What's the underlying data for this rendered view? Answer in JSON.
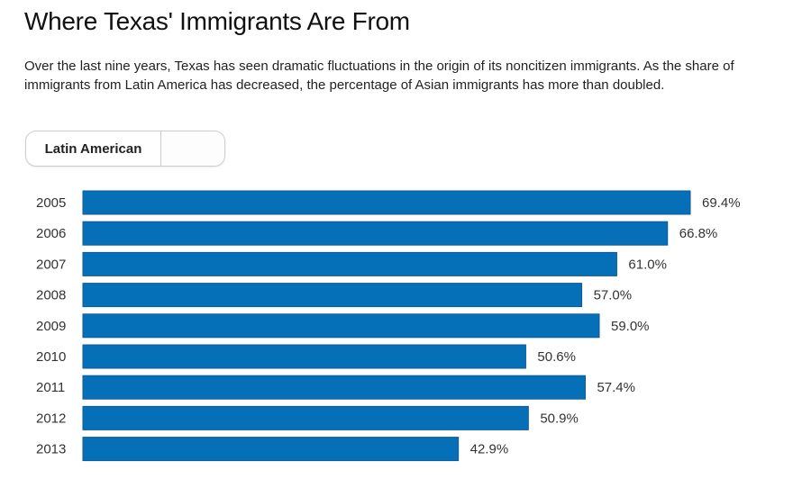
{
  "title": "Where Texas' Immigrants Are From",
  "description": "Over the last nine years, Texas has seen dramatic fluctuations in the origin of its noncitizen immigrants. As the share of immigrants from Latin America has decreased, the percentage of Asian immigrants has more than doubled.",
  "toggle": {
    "options": [
      "Latin American",
      ""
    ],
    "selected": "Latin American"
  },
  "chart_data": {
    "type": "bar",
    "orientation": "horizontal",
    "title": "Where Texas' Immigrants Are From",
    "series_name": "Latin American",
    "categories": [
      "2005",
      "2006",
      "2007",
      "2008",
      "2009",
      "2010",
      "2011",
      "2012",
      "2013"
    ],
    "values": [
      69.4,
      66.8,
      61.0,
      57.0,
      59.0,
      50.6,
      57.4,
      50.9,
      42.9
    ],
    "labels": [
      "69.4%",
      "66.8%",
      "61.0%",
      "57.0%",
      "59.0%",
      "50.6%",
      "57.4%",
      "50.9%",
      "42.9%"
    ],
    "unit": "%",
    "xlim": [
      0,
      69.4
    ],
    "grid": false,
    "color": "#0570b8"
  }
}
